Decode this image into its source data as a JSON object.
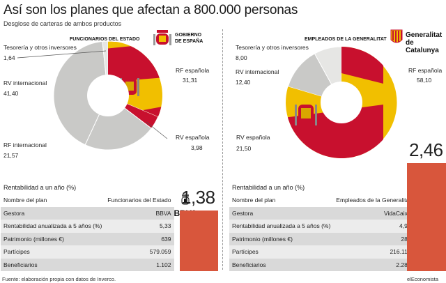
{
  "title": "Así son los planes que afectan a 800.000 personas",
  "subtitle": "Desglose de carteras de ambos productos",
  "colors": {
    "bar": "#d8563c",
    "spain_red": "#c8102e",
    "spain_yellow": "#f1bf00",
    "grey": "#c9c9c7",
    "light_grey": "#e6e6e4"
  },
  "chart_data": [
    {
      "type": "pie",
      "title": "FUNCIONARIOS DEL ESTADO",
      "logo_text": "GOBIERNO DE ESPAÑA",
      "labels": [
        "RF española",
        "RV española",
        "RF internacional",
        "RV internacional",
        "Tesorería y otros inversores"
      ],
      "values": [
        31.31,
        3.98,
        21.57,
        41.4,
        1.64
      ],
      "value_labels": [
        "31,31",
        "3,98",
        "21,57",
        "41,40",
        "1,64"
      ],
      "colors": [
        "spain_flag",
        "#c8102e",
        "#c9c9c7",
        "#c9c9c7",
        "#e6e6e4"
      ]
    },
    {
      "type": "pie",
      "title": "EMPLEADOS DE LA GENERALITAT",
      "logo_text": "Generalitat de Catalunya",
      "labels": [
        "RF española",
        "RV española",
        "RV internacional",
        "Tesorería y otros inversores"
      ],
      "values": [
        58.1,
        21.5,
        12.4,
        8.0
      ],
      "value_labels": [
        "58,10",
        "21,50",
        "12,40",
        "8,00"
      ],
      "colors": [
        "spain_flag",
        "spain_flag",
        "#c9c9c7",
        "#e6e6e4"
      ]
    },
    {
      "type": "bar",
      "title": "Rentabilidad a un año (%)",
      "categories": [
        "Funcionarios del Estado",
        "Empleados de la Generalitat"
      ],
      "values": [
        1.38,
        2.46
      ],
      "value_labels": [
        "1,38",
        "2,46"
      ]
    }
  ],
  "left": {
    "header": "FUNCIONARIOS DEL ESTADO",
    "logo_line1": "GOBIERNO",
    "logo_line2": "DE ESPAÑA",
    "labels": {
      "tesoreria": "Tesorería y otros inversores",
      "tesoreria_val": "1,64",
      "rv_int": "RV internacional",
      "rv_int_val": "41,40",
      "rf_int": "RF internacional",
      "rf_int_val": "21,57",
      "rf_esp": "RF española",
      "rf_esp_val": "31,31",
      "rv_esp": "RV española",
      "rv_esp_val": "3,98"
    },
    "table_title": "Rentabilidad a un año (%)",
    "bignum": "1,38",
    "rows": [
      {
        "label": "Nombre del plan",
        "value": "Funcionarios del Estado",
        "icon": "coat-of-arms-icon"
      },
      {
        "label": "Gestora",
        "value": "BBVA",
        "icon": "BBVA"
      },
      {
        "label": "Rentabilidad anualizada a 5 años (%)",
        "value": "5,33",
        "icon": "%"
      },
      {
        "label": "Patrimonio (millones €)",
        "value": "639",
        "icon": "briefcase-icon"
      },
      {
        "label": "Partícipes",
        "value": "579.059",
        "icon": "people-icon"
      },
      {
        "label": "Beneficiarios",
        "value": "1.102",
        "icon": "person-icon"
      }
    ]
  },
  "right": {
    "header": "EMPLEADOS DE LA GENERALITAT",
    "logo_line1": "Generalitat",
    "logo_line2": "de Catalunya",
    "labels": {
      "tesoreria": "Tesorería y otros inversores",
      "tesoreria_val": "8,00",
      "rv_int": "RV internacional",
      "rv_int_val": "12,40",
      "rf_esp": "RF española",
      "rf_esp_val": "58,10",
      "rv_esp": "RV española",
      "rv_esp_val": "21,50"
    },
    "table_title": "Rentabilidad a un año (%)",
    "bignum": "2,46",
    "rows": [
      {
        "label": "Nombre del plan",
        "value": "Empleados de la Generalitat",
        "icon": "catalan-flag-icon"
      },
      {
        "label": "Gestora",
        "value": "VidaCaixa",
        "icon": "plane-icon"
      },
      {
        "label": "Rentabilidad anualizada a 5 años (%)",
        "value": "4,91",
        "icon": "%"
      },
      {
        "label": "Patrimonio (millones €)",
        "value": "284",
        "icon": "briefcase-icon"
      },
      {
        "label": "Partícipes",
        "value": "216.114",
        "icon": "people-icon"
      },
      {
        "label": "Beneficiarios",
        "value": "2.283",
        "icon": "person-icon"
      }
    ]
  },
  "footer": {
    "source": "Fuente: elaboración propia con datos de Inverco.",
    "brand": "elEconomista"
  }
}
